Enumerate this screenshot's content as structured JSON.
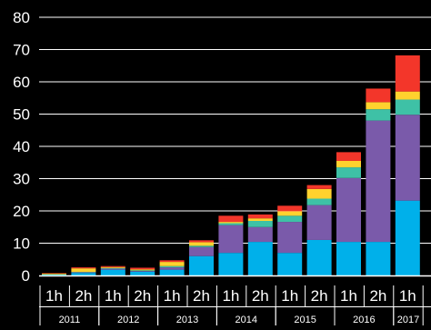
{
  "chart_data": {
    "type": "bar",
    "stacked": true,
    "title": "",
    "xlabel": "",
    "ylabel": "",
    "ylim": [
      0,
      80
    ],
    "yticks": [
      0,
      10,
      20,
      30,
      40,
      50,
      60,
      70,
      80
    ],
    "grid": true,
    "categories": [
      "1h",
      "2h",
      "1h",
      "2h",
      "1h",
      "2h",
      "1h",
      "2h",
      "1h",
      "2h",
      "1h",
      "2h",
      "1h"
    ],
    "groups": [
      {
        "label": "2011",
        "span": 2
      },
      {
        "label": "2012",
        "span": 2
      },
      {
        "label": "2013",
        "span": 2
      },
      {
        "label": "2014",
        "span": 2
      },
      {
        "label": "2015",
        "span": 2
      },
      {
        "label": "2016",
        "span": 2
      },
      {
        "label": "2017",
        "span": 1
      }
    ],
    "series": [
      {
        "color": "#00b0ea",
        "values": [
          0.3,
          0.8,
          1.8,
          1.2,
          1.8,
          6.0,
          7.0,
          10.4,
          7.0,
          11.0,
          10.4,
          10.4,
          23.2
        ]
      },
      {
        "color": "#7a5aaa",
        "values": [
          0.0,
          0.2,
          0.3,
          0.2,
          0.7,
          2.8,
          8.6,
          4.6,
          9.6,
          10.8,
          19.8,
          37.6,
          26.6
        ]
      },
      {
        "color": "#3ec1a6",
        "values": [
          0.0,
          0.1,
          0.2,
          0.2,
          0.4,
          0.4,
          0.6,
          1.9,
          1.9,
          2.0,
          3.3,
          3.5,
          4.7
        ]
      },
      {
        "color": "#ffd22e",
        "values": [
          0.3,
          1.1,
          0.3,
          0.3,
          1.3,
          1.1,
          0.4,
          0.8,
          1.4,
          3.0,
          2.0,
          2.2,
          2.5
        ]
      },
      {
        "color": "#f3362a",
        "values": [
          0.1,
          0.3,
          0.3,
          0.5,
          0.5,
          0.6,
          1.9,
          1.2,
          1.7,
          1.2,
          2.7,
          4.2,
          11.2
        ]
      }
    ]
  }
}
